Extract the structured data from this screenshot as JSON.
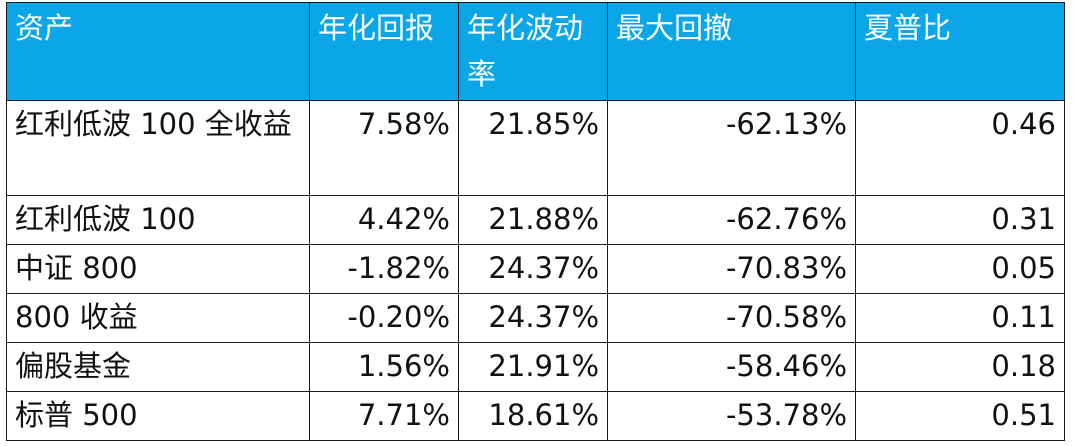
{
  "table": {
    "headers": [
      "资产",
      "年化回报",
      "年化波动率",
      "最大回撤",
      "夏普比"
    ],
    "rows": [
      [
        "红利低波 100 全收益",
        "7.58%",
        "21.85%",
        "-62.13%",
        "0.46"
      ],
      [
        "红利低波 100",
        "4.42%",
        "21.88%",
        "-62.76%",
        "0.31"
      ],
      [
        "中证 800",
        "-1.82%",
        "24.37%",
        "-70.83%",
        "0.05"
      ],
      [
        "800 收益",
        "-0.20%",
        "24.37%",
        "-70.58%",
        "0.11"
      ],
      [
        "偏股基金",
        "1.56%",
        "21.91%",
        "-58.46%",
        "0.18"
      ],
      [
        "标普 500",
        "7.71%",
        "18.61%",
        "-53.78%",
        "0.51"
      ]
    ]
  },
  "colors": {
    "header_background": "#0aa6e8",
    "header_text": "#ffffff",
    "border": "#1a1a1a",
    "body_text": "#111111"
  }
}
